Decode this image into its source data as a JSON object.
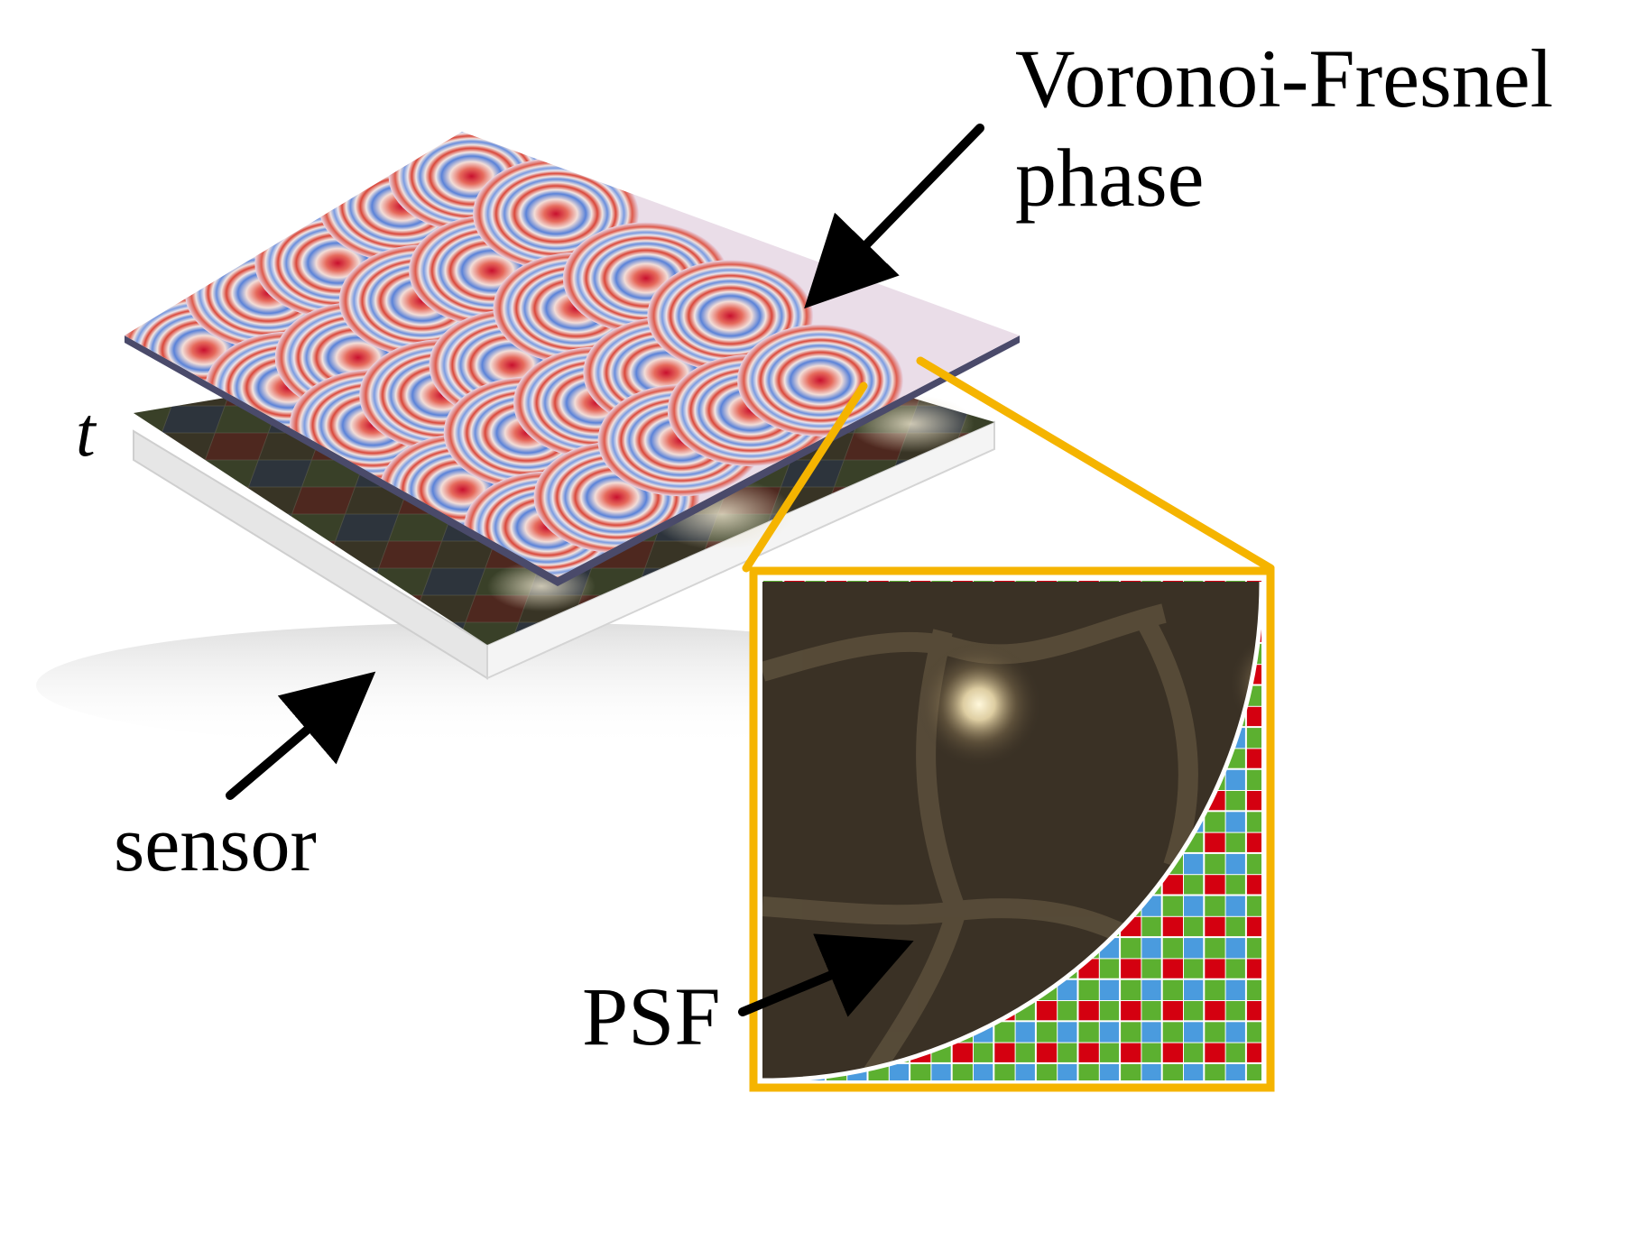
{
  "labels": {
    "phase_line1": "Voronoi-Fresnel",
    "phase_line2": "phase",
    "thickness": "t",
    "sensor": "sensor",
    "psf": "PSF"
  },
  "colors": {
    "highlight": "#F5B400",
    "fresnel_center": "#C8102E",
    "fresnel_light": "#F2DDD8",
    "fresnel_blue": "#5A82D8",
    "psf_background": "#3A3125",
    "psf_peak": "#FFF4D0",
    "bayer_red": "#D40010",
    "bayer_green": "#5CB030",
    "bayer_blue": "#4A9BDE"
  },
  "bayer_pattern": [
    [
      "green",
      "red"
    ],
    [
      "blue",
      "green"
    ]
  ]
}
